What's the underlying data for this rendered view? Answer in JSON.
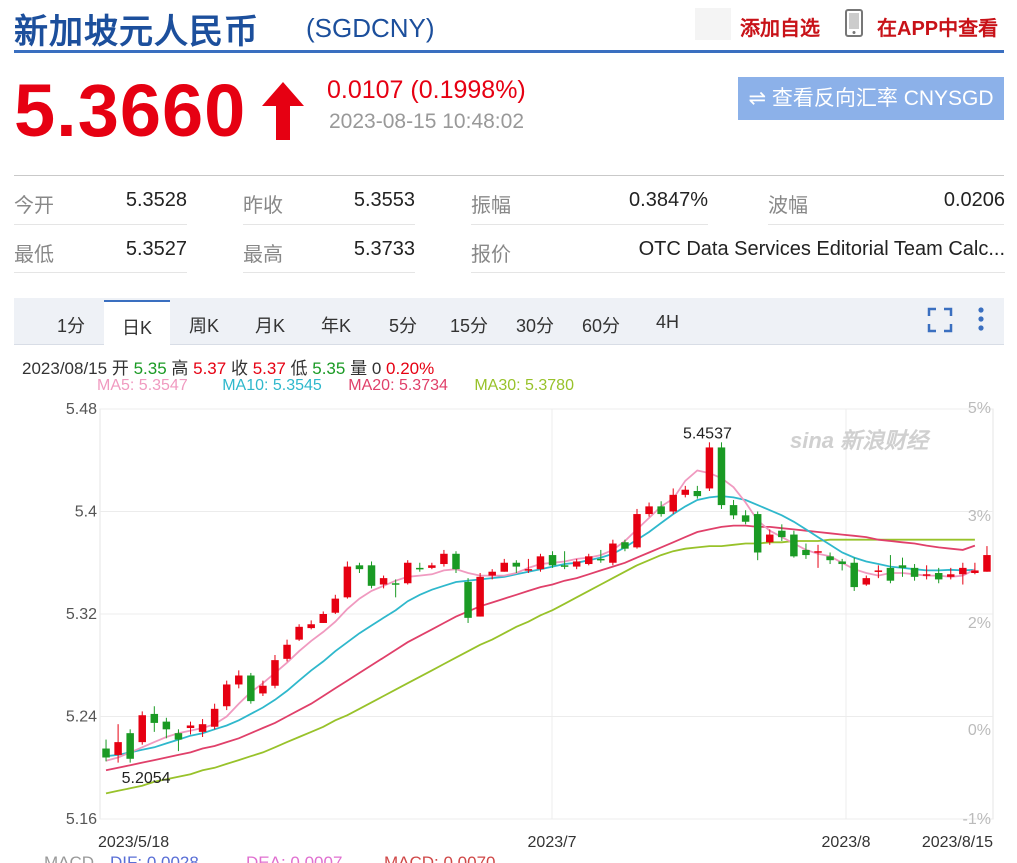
{
  "header": {
    "title": "新加坡元人民币",
    "code": "(SGDCNY)",
    "watch_label": "添加自选",
    "app_label": "在APP中查看"
  },
  "quote": {
    "price": "5.3660",
    "direction": "up",
    "change": "0.0107 (0.1998%)",
    "timestamp": "2023-08-15 10:48:02",
    "reverse_label": "⇌ 查看反向汇率 CNYSGD"
  },
  "stats": {
    "row1": [
      {
        "label": "今开",
        "value": "5.3528"
      },
      {
        "label": "昨收",
        "value": "5.3553"
      },
      {
        "label": "振幅",
        "value": "0.3847%"
      },
      {
        "label": "波幅",
        "value": "0.0206"
      }
    ],
    "row2": [
      {
        "label": "最低",
        "value": "5.3527"
      },
      {
        "label": "最高",
        "value": "5.3733"
      },
      {
        "label": "报价",
        "value": "OTC Data Services Editorial Team Calc..."
      }
    ]
  },
  "tabs": [
    "1分",
    "日K",
    "周K",
    "月K",
    "年K",
    "5分",
    "15分",
    "30分",
    "60分",
    "4H"
  ],
  "active_tab": "日K",
  "info": {
    "date": "2023/08/15",
    "open_label": "开",
    "open": "5.35",
    "high_label": "高",
    "high": "5.37",
    "close_label": "收",
    "close": "5.37",
    "low_label": "低",
    "low": "5.35",
    "vol_label": "量",
    "vol": "0",
    "pct": "0.20%"
  },
  "ma_legend": {
    "ma5": "MA5: 5.3547",
    "ma10": "MA10: 5.3545",
    "ma20": "MA20: 5.3734",
    "ma30": "MA30: 5.3780"
  },
  "macd_partial": {
    "label": "MACD",
    "dif": "DIF: 0.0028",
    "dea": "DEA: 0.0007",
    "macd": "MACD: 0.0070"
  },
  "colors": {
    "up": "#e60012",
    "down": "#1a9a24",
    "ma5": "#f09ac0",
    "ma10": "#2fb8cc",
    "ma20": "#e0406a",
    "ma30": "#98c22a",
    "brand": "#1c4f9c"
  },
  "watermark": "sina 新浪财经",
  "chart_data": {
    "type": "candlestick",
    "ylim": [
      5.16,
      5.48
    ],
    "y_ticks": [
      "5.48",
      "5.4",
      "5.32",
      "5.24",
      "5.16"
    ],
    "y2_ticks": [
      "5%",
      "3%",
      "2%",
      "0%",
      "-1%"
    ],
    "x_labels": [
      "2023/5/18",
      "2023/7",
      "2023/8",
      "2023/8/15"
    ],
    "annotations": [
      {
        "text": "5.4537",
        "value": 5.4537
      },
      {
        "text": "5.2054",
        "value": 5.2054
      }
    ],
    "candles": [
      [
        5.215,
        5.208,
        5.222,
        5.205
      ],
      [
        5.21,
        5.22,
        5.234,
        5.204
      ],
      [
        5.227,
        5.207,
        5.23,
        5.204
      ],
      [
        5.22,
        5.241,
        5.244,
        5.218
      ],
      [
        5.242,
        5.235,
        5.248,
        5.228
      ],
      [
        5.236,
        5.23,
        5.239,
        5.223
      ],
      [
        5.227,
        5.222,
        5.23,
        5.213
      ],
      [
        5.231,
        5.233,
        5.236,
        5.226
      ],
      [
        5.228,
        5.234,
        5.238,
        5.224
      ],
      [
        5.232,
        5.246,
        5.25,
        5.23
      ],
      [
        5.248,
        5.265,
        5.268,
        5.245
      ],
      [
        5.265,
        5.272,
        5.276,
        5.262
      ],
      [
        5.272,
        5.252,
        5.274,
        5.25
      ],
      [
        5.258,
        5.264,
        5.268,
        5.256
      ],
      [
        5.264,
        5.284,
        5.288,
        5.262
      ],
      [
        5.285,
        5.296,
        5.3,
        5.283
      ],
      [
        5.3,
        5.31,
        5.312,
        5.299
      ],
      [
        5.309,
        5.312,
        5.315,
        5.308
      ],
      [
        5.313,
        5.32,
        5.322,
        5.313
      ],
      [
        5.321,
        5.332,
        5.335,
        5.32
      ],
      [
        5.333,
        5.357,
        5.361,
        5.332
      ],
      [
        5.358,
        5.355,
        5.36,
        5.352
      ],
      [
        5.358,
        5.342,
        5.361,
        5.34
      ],
      [
        5.343,
        5.348,
        5.35,
        5.34
      ],
      [
        5.344,
        5.343,
        5.347,
        5.333
      ],
      [
        5.344,
        5.36,
        5.362,
        5.343
      ],
      [
        5.356,
        5.355,
        5.36,
        5.353
      ],
      [
        5.356,
        5.358,
        5.36,
        5.355
      ],
      [
        5.359,
        5.367,
        5.37,
        5.357
      ],
      [
        5.367,
        5.355,
        5.369,
        5.352
      ],
      [
        5.345,
        5.317,
        5.348,
        5.313
      ],
      [
        5.318,
        5.349,
        5.352,
        5.318
      ],
      [
        5.35,
        5.353,
        5.355,
        5.347
      ],
      [
        5.353,
        5.36,
        5.363,
        5.353
      ],
      [
        5.36,
        5.357,
        5.362,
        5.352
      ],
      [
        5.355,
        5.355,
        5.363,
        5.352
      ],
      [
        5.355,
        5.365,
        5.367,
        5.353
      ],
      [
        5.366,
        5.358,
        5.369,
        5.356
      ],
      [
        5.358,
        5.357,
        5.369,
        5.355
      ],
      [
        5.357,
        5.361,
        5.363,
        5.355
      ],
      [
        5.359,
        5.365,
        5.367,
        5.358
      ],
      [
        5.363,
        5.362,
        5.37,
        5.36
      ],
      [
        5.36,
        5.375,
        5.378,
        5.358
      ],
      [
        5.376,
        5.371,
        5.378,
        5.369
      ],
      [
        5.372,
        5.398,
        5.402,
        5.371
      ],
      [
        5.398,
        5.404,
        5.407,
        5.396
      ],
      [
        5.404,
        5.398,
        5.408,
        5.396
      ],
      [
        5.4,
        5.413,
        5.418,
        5.398
      ],
      [
        5.413,
        5.417,
        5.42,
        5.411
      ],
      [
        5.416,
        5.412,
        5.42,
        5.41
      ],
      [
        5.418,
        5.45,
        5.454,
        5.416
      ],
      [
        5.45,
        5.405,
        5.454,
        5.402
      ],
      [
        5.405,
        5.397,
        5.409,
        5.394
      ],
      [
        5.397,
        5.392,
        5.401,
        5.39
      ],
      [
        5.398,
        5.368,
        5.4,
        5.362
      ],
      [
        5.376,
        5.382,
        5.386,
        5.374
      ],
      [
        5.385,
        5.38,
        5.39,
        5.377
      ],
      [
        5.382,
        5.365,
        5.385,
        5.364
      ],
      [
        5.37,
        5.366,
        5.375,
        5.363
      ],
      [
        5.369,
        5.369,
        5.374,
        5.356
      ],
      [
        5.365,
        5.362,
        5.368,
        5.359
      ],
      [
        5.361,
        5.359,
        5.363,
        5.354
      ],
      [
        5.36,
        5.341,
        5.364,
        5.338
      ],
      [
        5.343,
        5.348,
        5.35,
        5.342
      ],
      [
        5.353,
        5.354,
        5.358,
        5.348
      ],
      [
        5.356,
        5.346,
        5.366,
        5.344
      ],
      [
        5.358,
        5.356,
        5.364,
        5.349
      ],
      [
        5.356,
        5.349,
        5.359,
        5.346
      ],
      [
        5.35,
        5.351,
        5.358,
        5.347
      ],
      [
        5.352,
        5.347,
        5.356,
        5.344
      ],
      [
        5.349,
        5.351,
        5.356,
        5.347
      ],
      [
        5.351,
        5.356,
        5.36,
        5.343
      ],
      [
        5.352,
        5.354,
        5.36,
        5.351
      ],
      [
        5.353,
        5.366,
        5.373,
        5.353
      ]
    ],
    "ma5": [
      5.2054,
      5.208,
      5.212,
      5.216,
      5.22,
      5.224,
      5.227,
      5.229,
      5.231,
      5.234,
      5.24,
      5.25,
      5.259,
      5.266,
      5.274,
      5.282,
      5.291,
      5.299,
      5.306,
      5.314,
      5.324,
      5.332,
      5.338,
      5.342,
      5.346,
      5.349,
      5.35,
      5.351,
      5.354,
      5.355,
      5.352,
      5.35,
      5.35,
      5.35,
      5.352,
      5.356,
      5.359,
      5.36,
      5.361,
      5.363,
      5.364,
      5.366,
      5.37,
      5.377,
      5.386,
      5.395,
      5.404,
      5.41,
      5.424,
      5.432,
      5.43,
      5.426,
      5.419,
      5.407,
      5.393,
      5.385,
      5.38,
      5.375,
      5.37,
      5.367,
      5.365,
      5.36,
      5.355,
      5.352,
      5.35,
      5.352,
      5.352,
      5.351,
      5.35,
      5.35,
      5.349,
      5.35,
      5.3547
    ],
    "ma10": [
      5.209,
      5.21,
      5.212,
      5.214,
      5.216,
      5.219,
      5.222,
      5.225,
      5.227,
      5.23,
      5.233,
      5.237,
      5.242,
      5.247,
      5.253,
      5.26,
      5.268,
      5.276,
      5.283,
      5.291,
      5.298,
      5.305,
      5.311,
      5.317,
      5.323,
      5.33,
      5.335,
      5.339,
      5.342,
      5.345,
      5.346,
      5.347,
      5.348,
      5.349,
      5.351,
      5.353,
      5.355,
      5.357,
      5.359,
      5.36,
      5.362,
      5.364,
      5.367,
      5.372,
      5.378,
      5.384,
      5.391,
      5.398,
      5.404,
      5.409,
      5.411,
      5.412,
      5.411,
      5.409,
      5.405,
      5.401,
      5.397,
      5.392,
      5.386,
      5.38,
      5.374,
      5.368,
      5.364,
      5.361,
      5.359,
      5.357,
      5.356,
      5.355,
      5.354,
      5.354,
      5.3545,
      5.354,
      5.3545
    ],
    "ma20": [
      5.198,
      5.2,
      5.202,
      5.204,
      5.206,
      5.208,
      5.21,
      5.212,
      5.215,
      5.217,
      5.22,
      5.223,
      5.227,
      5.231,
      5.235,
      5.24,
      5.245,
      5.25,
      5.256,
      5.262,
      5.268,
      5.274,
      5.28,
      5.286,
      5.292,
      5.298,
      5.303,
      5.308,
      5.313,
      5.318,
      5.322,
      5.326,
      5.329,
      5.332,
      5.335,
      5.338,
      5.341,
      5.343,
      5.346,
      5.348,
      5.351,
      5.354,
      5.357,
      5.36,
      5.364,
      5.368,
      5.372,
      5.376,
      5.38,
      5.384,
      5.386,
      5.388,
      5.389,
      5.389,
      5.388,
      5.388,
      5.387,
      5.386,
      5.385,
      5.384,
      5.383,
      5.382,
      5.381,
      5.38,
      5.378,
      5.377,
      5.376,
      5.375,
      5.3734,
      5.372,
      5.371,
      5.37,
      5.3734
    ],
    "ma30": [
      5.18,
      5.182,
      5.184,
      5.186,
      5.189,
      5.191,
      5.193,
      5.195,
      5.198,
      5.2,
      5.203,
      5.206,
      5.209,
      5.212,
      5.216,
      5.22,
      5.224,
      5.228,
      5.232,
      5.237,
      5.241,
      5.246,
      5.251,
      5.256,
      5.261,
      5.266,
      5.271,
      5.276,
      5.281,
      5.286,
      5.291,
      5.296,
      5.3,
      5.305,
      5.31,
      5.314,
      5.319,
      5.323,
      5.328,
      5.333,
      5.338,
      5.343,
      5.348,
      5.353,
      5.358,
      5.362,
      5.366,
      5.369,
      5.371,
      5.372,
      5.373,
      5.373,
      5.374,
      5.375,
      5.375,
      5.376,
      5.376,
      5.377,
      5.377,
      5.377,
      5.378,
      5.378,
      5.378,
      5.378,
      5.378,
      5.378,
      5.378,
      5.378,
      5.378,
      5.378,
      5.378,
      5.378,
      5.378
    ]
  }
}
